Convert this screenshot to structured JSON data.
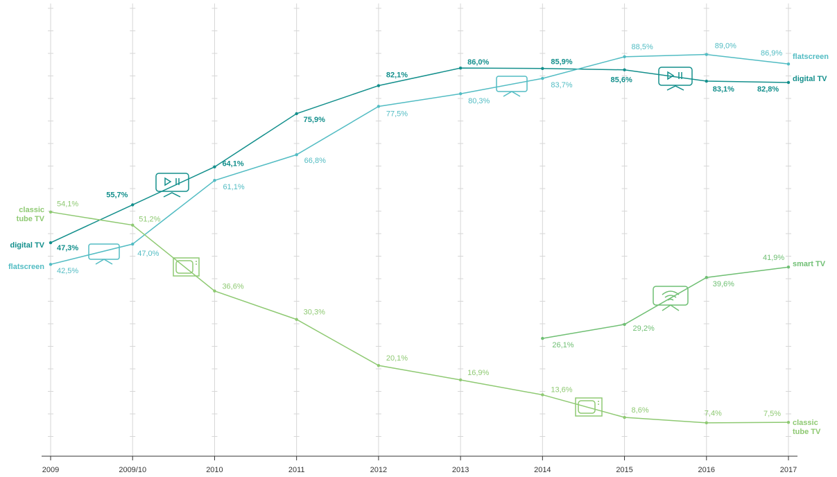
{
  "chart_data": {
    "type": "line",
    "categories": [
      "2009",
      "2009/10",
      "2010",
      "2011",
      "2012",
      "2013",
      "2014",
      "2015",
      "2016",
      "2017"
    ],
    "ylim": [
      0,
      100
    ],
    "series": [
      {
        "name": "digital TV",
        "color": "#138f8c",
        "values": [
          47.3,
          55.7,
          64.1,
          75.9,
          82.1,
          86.0,
          85.9,
          85.6,
          83.1,
          82.8
        ],
        "value_labels": [
          "47,3%",
          "55,7%",
          "64,1%",
          "75,9%",
          "82,1%",
          "86,0%",
          "85,9%",
          "85,6%",
          "83,1%",
          "82,8%"
        ]
      },
      {
        "name": "flatscreen",
        "color": "#52bcc3",
        "values": [
          42.5,
          47.0,
          61.1,
          66.8,
          77.5,
          80.3,
          83.7,
          88.5,
          89.0,
          86.9
        ],
        "value_labels": [
          "42,5%",
          "47,0%",
          "61,1%",
          "66,8%",
          "77,5%",
          "80,3%",
          "83,7%",
          "88,5%",
          "89,0%",
          "86,9%"
        ]
      },
      {
        "name": "classic tube TV",
        "color": "#8ec972",
        "values": [
          54.1,
          51.2,
          36.6,
          30.3,
          20.1,
          16.9,
          13.6,
          8.6,
          7.4,
          7.5
        ],
        "value_labels": [
          "54,1%",
          "51,2%",
          "36,6%",
          "30,3%",
          "20,1%",
          "16,9%",
          "13,6%",
          "8,6%",
          "7,4%",
          "7,5%"
        ]
      },
      {
        "name": "smart TV",
        "color": "#6fbf73",
        "values": [
          null,
          null,
          null,
          null,
          null,
          null,
          26.1,
          29.2,
          39.6,
          41.9
        ],
        "value_labels": [
          null,
          null,
          null,
          null,
          null,
          null,
          "26,1%",
          "29,2%",
          "39,6%",
          "41,9%"
        ]
      }
    ]
  }
}
